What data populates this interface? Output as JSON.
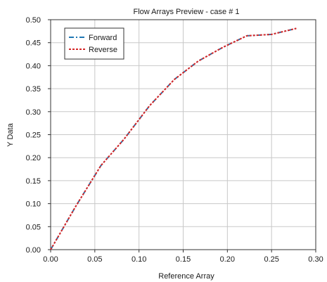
{
  "chart_data": {
    "type": "line",
    "title": "Flow Arrays Preview - case # 1",
    "xlabel": "Reference Array",
    "ylabel": "Y Data",
    "xlim": [
      0,
      0.3
    ],
    "ylim": [
      0,
      0.5
    ],
    "x_ticks": [
      "0.00",
      "0.05",
      "0.10",
      "0.15",
      "0.20",
      "0.25",
      "0.30"
    ],
    "y_ticks": [
      "0.00",
      "0.05",
      "0.10",
      "0.15",
      "0.20",
      "0.25",
      "0.30",
      "0.35",
      "0.40",
      "0.45",
      "0.50"
    ],
    "grid": true,
    "legend_position": "top-left",
    "series": [
      {
        "name": "Forward",
        "color": "#1f77b4",
        "dash": "dash-dot",
        "x": [
          0.0,
          0.028,
          0.057,
          0.083,
          0.112,
          0.14,
          0.167,
          0.195,
          0.222,
          0.25,
          0.278
        ],
        "y": [
          0.0,
          0.093,
          0.183,
          0.24,
          0.313,
          0.37,
          0.41,
          0.44,
          0.465,
          0.468,
          0.481
        ]
      },
      {
        "name": "Reverse",
        "color": "#d62728",
        "dash": "dotted",
        "x": [
          0.0,
          0.028,
          0.057,
          0.083,
          0.112,
          0.14,
          0.167,
          0.195,
          0.222,
          0.25,
          0.278
        ],
        "y": [
          0.0,
          0.093,
          0.183,
          0.24,
          0.313,
          0.37,
          0.41,
          0.44,
          0.465,
          0.468,
          0.481
        ]
      }
    ]
  }
}
